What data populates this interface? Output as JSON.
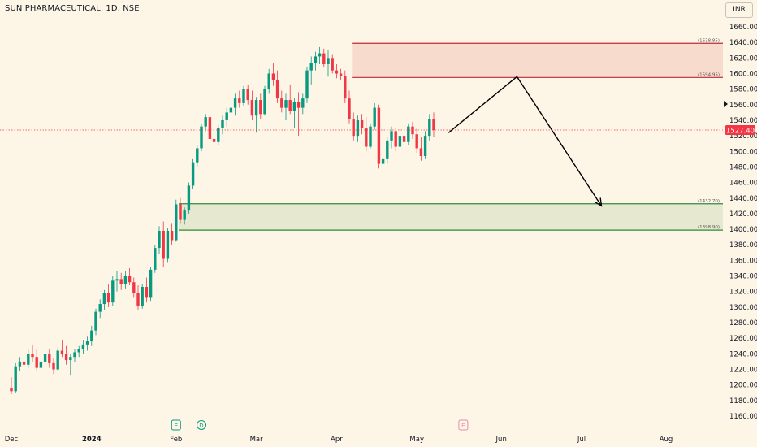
{
  "header": {
    "symbol": "SUN PHARMACEUTICAL",
    "interval": "1D",
    "exchange": "NSE",
    "title": "SUN PHARMACEUTICAL, 1D, NSE",
    "currency": "INR"
  },
  "colors": {
    "background": "#fdf6e7",
    "up": "#089981",
    "down": "#f23645",
    "supply_zone_fill": "#f7dccd",
    "supply_zone_border": "#c2273a",
    "demand_zone_fill": "#e6e9cf",
    "demand_zone_border": "#2e8b3a",
    "projection_line": "#000000",
    "price_label": "#f23645"
  },
  "chart_data": {
    "type": "candlestick",
    "title": "SUN PHARMACEUTICAL, 1D, NSE",
    "yrange": [
      1150,
      1670
    ],
    "y_ticks": [
      1160,
      1180,
      1200,
      1220,
      1240,
      1260,
      1280,
      1300,
      1320,
      1340,
      1360,
      1380,
      1400,
      1420,
      1440,
      1460,
      1480,
      1500,
      1520,
      1540,
      1560,
      1580,
      1600,
      1620,
      1640,
      1660
    ],
    "x_tick_labels": [
      {
        "label": "Dec",
        "bar": 0
      },
      {
        "label": "2024",
        "bar": 19
      },
      {
        "label": "Feb",
        "bar": 39
      },
      {
        "label": "Mar",
        "bar": 58
      },
      {
        "label": "Apr",
        "bar": 77
      },
      {
        "label": "May",
        "bar": 96
      },
      {
        "label": "Jun",
        "bar": 116
      },
      {
        "label": "Jul",
        "bar": 135
      },
      {
        "label": "Aug",
        "bar": 155
      }
    ],
    "current_price": "1527.40",
    "current_price_value": 1527.4,
    "candles": [
      [
        1196,
        1210,
        1188,
        1192
      ],
      [
        1192,
        1228,
        1190,
        1224
      ],
      [
        1224,
        1236,
        1218,
        1230
      ],
      [
        1230,
        1240,
        1220,
        1226
      ],
      [
        1226,
        1245,
        1222,
        1240
      ],
      [
        1240,
        1252,
        1230,
        1236
      ],
      [
        1236,
        1246,
        1218,
        1222
      ],
      [
        1222,
        1236,
        1216,
        1230
      ],
      [
        1230,
        1244,
        1226,
        1240
      ],
      [
        1240,
        1246,
        1222,
        1228
      ],
      [
        1228,
        1234,
        1214,
        1220
      ],
      [
        1220,
        1248,
        1218,
        1244
      ],
      [
        1244,
        1258,
        1236,
        1240
      ],
      [
        1240,
        1250,
        1226,
        1232
      ],
      [
        1232,
        1240,
        1212,
        1236
      ],
      [
        1236,
        1246,
        1230,
        1242
      ],
      [
        1242,
        1250,
        1236,
        1246
      ],
      [
        1246,
        1258,
        1240,
        1252
      ],
      [
        1252,
        1262,
        1244,
        1256
      ],
      [
        1256,
        1276,
        1250,
        1270
      ],
      [
        1270,
        1298,
        1264,
        1294
      ],
      [
        1294,
        1310,
        1286,
        1304
      ],
      [
        1304,
        1322,
        1296,
        1318
      ],
      [
        1318,
        1330,
        1300,
        1306
      ],
      [
        1306,
        1340,
        1302,
        1334
      ],
      [
        1334,
        1346,
        1320,
        1336
      ],
      [
        1336,
        1344,
        1322,
        1330
      ],
      [
        1330,
        1346,
        1324,
        1340
      ],
      [
        1340,
        1350,
        1328,
        1332
      ],
      [
        1332,
        1338,
        1312,
        1318
      ],
      [
        1318,
        1328,
        1296,
        1302
      ],
      [
        1302,
        1330,
        1298,
        1326
      ],
      [
        1326,
        1338,
        1306,
        1312
      ],
      [
        1312,
        1352,
        1308,
        1348
      ],
      [
        1348,
        1380,
        1344,
        1376
      ],
      [
        1376,
        1404,
        1368,
        1398
      ],
      [
        1398,
        1410,
        1352,
        1362
      ],
      [
        1362,
        1402,
        1358,
        1398
      ],
      [
        1398,
        1408,
        1380,
        1386
      ],
      [
        1386,
        1438,
        1384,
        1432
      ],
      [
        1432,
        1440,
        1408,
        1412
      ],
      [
        1412,
        1428,
        1406,
        1424
      ],
      [
        1424,
        1460,
        1420,
        1456
      ],
      [
        1456,
        1490,
        1452,
        1486
      ],
      [
        1486,
        1508,
        1480,
        1504
      ],
      [
        1504,
        1536,
        1500,
        1532
      ],
      [
        1532,
        1548,
        1526,
        1544
      ],
      [
        1544,
        1552,
        1510,
        1516
      ],
      [
        1516,
        1538,
        1506,
        1512
      ],
      [
        1512,
        1534,
        1508,
        1530
      ],
      [
        1530,
        1546,
        1522,
        1540
      ],
      [
        1540,
        1556,
        1532,
        1550
      ],
      [
        1550,
        1562,
        1540,
        1556
      ],
      [
        1556,
        1574,
        1546,
        1568
      ],
      [
        1568,
        1578,
        1556,
        1562
      ],
      [
        1562,
        1584,
        1558,
        1580
      ],
      [
        1580,
        1586,
        1560,
        1566
      ],
      [
        1566,
        1578,
        1540,
        1546
      ],
      [
        1546,
        1570,
        1524,
        1566
      ],
      [
        1566,
        1574,
        1542,
        1548
      ],
      [
        1548,
        1584,
        1546,
        1580
      ],
      [
        1580,
        1606,
        1574,
        1600
      ],
      [
        1600,
        1614,
        1584,
        1592
      ],
      [
        1592,
        1604,
        1562,
        1568
      ],
      [
        1568,
        1578,
        1550,
        1556
      ],
      [
        1556,
        1574,
        1540,
        1566
      ],
      [
        1566,
        1586,
        1548,
        1552
      ],
      [
        1552,
        1568,
        1530,
        1564
      ],
      [
        1564,
        1576,
        1520,
        1556
      ],
      [
        1556,
        1574,
        1548,
        1568
      ],
      [
        1568,
        1608,
        1562,
        1604
      ],
      [
        1604,
        1622,
        1586,
        1614
      ],
      [
        1614,
        1628,
        1604,
        1622
      ],
      [
        1622,
        1634,
        1612,
        1626
      ],
      [
        1626,
        1632,
        1608,
        1612
      ],
      [
        1612,
        1630,
        1596,
        1620
      ],
      [
        1620,
        1624,
        1600,
        1604
      ],
      [
        1604,
        1612,
        1594,
        1600
      ],
      [
        1600,
        1606,
        1592,
        1597
      ],
      [
        1597,
        1604,
        1562,
        1568
      ],
      [
        1568,
        1578,
        1536,
        1542
      ],
      [
        1542,
        1550,
        1514,
        1520
      ],
      [
        1520,
        1546,
        1512,
        1540
      ],
      [
        1540,
        1548,
        1522,
        1530
      ],
      [
        1530,
        1544,
        1500,
        1506
      ],
      [
        1506,
        1536,
        1504,
        1532
      ],
      [
        1532,
        1562,
        1528,
        1556
      ],
      [
        1556,
        1560,
        1478,
        1484
      ],
      [
        1484,
        1496,
        1478,
        1490
      ],
      [
        1490,
        1518,
        1484,
        1514
      ],
      [
        1514,
        1532,
        1504,
        1526
      ],
      [
        1526,
        1530,
        1500,
        1506
      ],
      [
        1506,
        1526,
        1498,
        1520
      ],
      [
        1520,
        1532,
        1506,
        1512
      ],
      [
        1512,
        1536,
        1508,
        1532
      ],
      [
        1532,
        1538,
        1516,
        1522
      ],
      [
        1522,
        1530,
        1498,
        1504
      ],
      [
        1504,
        1518,
        1488,
        1494
      ],
      [
        1494,
        1526,
        1490,
        1520
      ],
      [
        1520,
        1548,
        1514,
        1542
      ],
      [
        1542,
        1550,
        1518,
        1527.4
      ]
    ],
    "zones": [
      {
        "name": "supply",
        "top": 1638.85,
        "bottom": 1594.95,
        "top_label": "(1638.85)",
        "bottom_label": "(1594.95)",
        "start_bar": 81
      },
      {
        "name": "demand",
        "top": 1432.7,
        "bottom": 1398.9,
        "top_label": "(1432.70)",
        "bottom_label": "(1398.90)",
        "start_bar": 40
      }
    ],
    "projection": {
      "points": [
        [
          103.5,
          1524
        ],
        [
          119.7,
          1596
        ],
        [
          139.7,
          1430
        ]
      ],
      "arrow": "down"
    },
    "events": [
      {
        "label": "E",
        "bar": 39,
        "style": "earnings"
      },
      {
        "label": "D",
        "bar": 45,
        "style": "dividend"
      },
      {
        "label": "E",
        "bar": 107,
        "style": "earnings-upcoming"
      }
    ],
    "legend_placement": "top-left",
    "grid": false
  }
}
